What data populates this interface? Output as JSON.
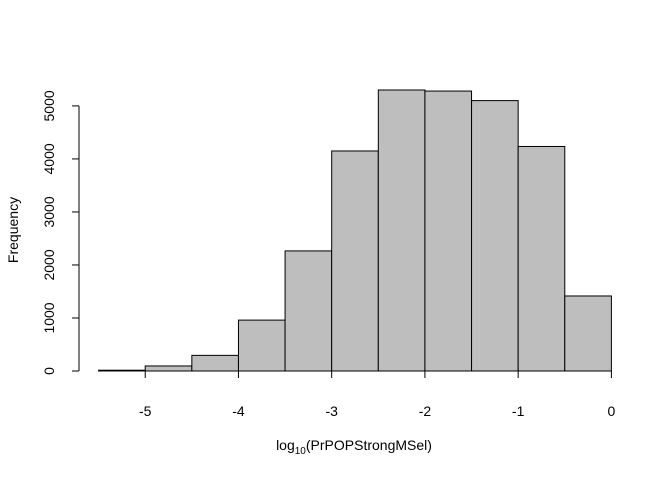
{
  "chart_data": {
    "type": "bar",
    "subtype": "histogram",
    "bin_edges": [
      -5.5,
      -5.0,
      -4.5,
      -4.0,
      -3.5,
      -3.0,
      -2.5,
      -2.0,
      -1.5,
      -1.0,
      -0.5,
      0.0
    ],
    "values": [
      15,
      95,
      295,
      960,
      2265,
      4150,
      5300,
      5280,
      5100,
      4235,
      1415
    ],
    "bar_fill": "#bebebe",
    "bar_stroke": "#000000",
    "xlim": [
      -5.5,
      0
    ],
    "ylim": [
      0,
      5300
    ],
    "x_ticks": [
      -5,
      -4,
      -3,
      -2,
      -1,
      0
    ],
    "x_tick_labels": [
      "-5",
      "-4",
      "-3",
      "-2",
      "-1",
      "0"
    ],
    "y_ticks": [
      0,
      1000,
      2000,
      3000,
      4000,
      5000
    ],
    "y_tick_labels": [
      "0",
      "1000",
      "2000",
      "3000",
      "4000",
      "5000"
    ],
    "xlabel": {
      "prefix": "log",
      "subscript": "10",
      "suffix": "(PrPOPStrongMSel)"
    },
    "ylabel": "Frequency",
    "grid": false
  }
}
